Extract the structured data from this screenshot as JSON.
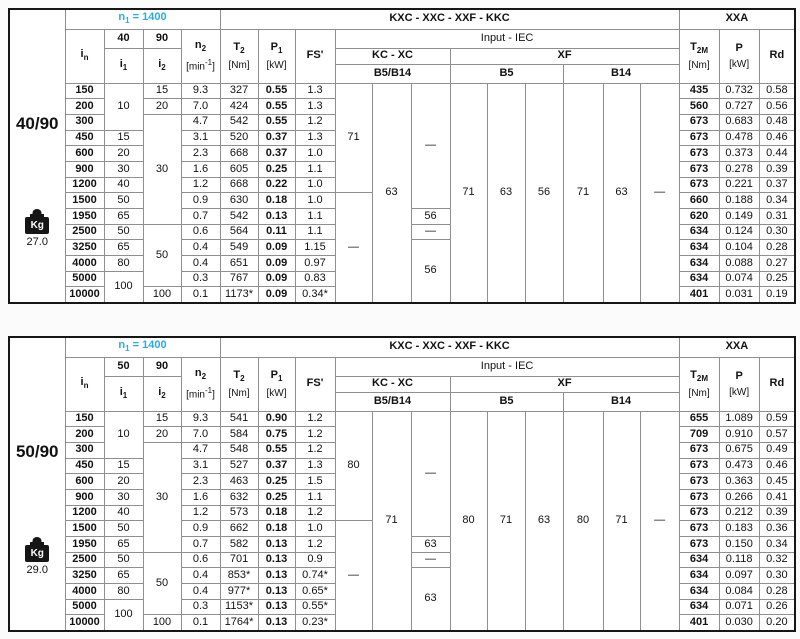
{
  "colors": {
    "accent_cyan": "#29abe2",
    "header_blue": "#d3e8f6",
    "shaded_cell_gray": "#e2e2e2",
    "border_dark": "#161616"
  },
  "tables": [
    {
      "ratio": "40/90",
      "kg_icon_label": "Kg",
      "weight_kg": "27.0",
      "header": {
        "n1": "n_{1} = 1400",
        "main_title": "KXC - XXC - XXF - KKC",
        "right_title": "XXA",
        "col_in": "i_{n}",
        "group_i1": "40",
        "group_i2": "90",
        "col_i1": "i_{1}",
        "col_i2": "i_{2}",
        "col_n2": "n_{2}",
        "n2_unit": "[min^{-1}]",
        "col_t2": "T_{2}",
        "t2_unit": "[Nm]",
        "col_p1": "P_{1}",
        "p1_unit": "[kW]",
        "col_fs": "FS'",
        "input_iec": "Input - IEC",
        "kc_xc": "KC - XC",
        "xf": "XF",
        "b5b14": "B5/B14",
        "b5": "B5",
        "b14": "B14",
        "col_t2m": "T_{2M}",
        "t2m_unit": "[Nm]",
        "col_p": "P",
        "p_unit": "[kW]",
        "col_rd": "Rd"
      },
      "rows": [
        {
          "in": "150",
          "n2": "9.3",
          "t2": "327",
          "p1": "0.55",
          "fs": "1.3",
          "t2m": "435",
          "p": "0.732",
          "rd": "0.58"
        },
        {
          "in": "200",
          "n2": "7.0",
          "t2": "424",
          "p1": "0.55",
          "fs": "1.3",
          "t2m": "560",
          "p": "0.727",
          "rd": "0.56"
        },
        {
          "in": "300",
          "n2": "4.7",
          "t2": "542",
          "p1": "0.55",
          "fs": "1.2",
          "t2m": "673",
          "p": "0.683",
          "rd": "0.48"
        },
        {
          "in": "450",
          "n2": "3.1",
          "t2": "520",
          "p1": "0.37",
          "fs": "1.3",
          "t2m": "673",
          "p": "0.478",
          "rd": "0.46"
        },
        {
          "in": "600",
          "n2": "2.3",
          "t2": "668",
          "p1": "0.37",
          "fs": "1.0",
          "t2m": "673",
          "p": "0.373",
          "rd": "0.44"
        },
        {
          "in": "900",
          "n2": "1.6",
          "t2": "605",
          "p1": "0.25",
          "fs": "1.1",
          "t2m": "673",
          "p": "0.278",
          "rd": "0.39"
        },
        {
          "in": "1200",
          "n2": "1.2",
          "t2": "668",
          "p1": "0.22",
          "fs": "1.0",
          "t2m": "673",
          "p": "0.221",
          "rd": "0.37"
        },
        {
          "in": "1500",
          "n2": "0.9",
          "t2": "630",
          "p1": "0.18",
          "fs": "1.0",
          "t2m": "660",
          "p": "0.188",
          "rd": "0.34"
        },
        {
          "in": "1950",
          "n2": "0.7",
          "t2": "542",
          "p1": "0.13",
          "fs": "1.1",
          "t2m": "620",
          "p": "0.149",
          "rd": "0.31"
        },
        {
          "in": "2500",
          "n2": "0.6",
          "t2": "564",
          "p1": "0.11",
          "fs": "1.1",
          "t2m": "634",
          "p": "0.124",
          "rd": "0.30"
        },
        {
          "in": "3250",
          "n2": "0.4",
          "t2": "549",
          "p1": "0.09",
          "fs": "1.15",
          "t2m": "634",
          "p": "0.104",
          "rd": "0.28"
        },
        {
          "in": "4000",
          "n2": "0.4",
          "t2": "651",
          "p1": "0.09",
          "fs": "0.97",
          "t2m": "634",
          "p": "0.088",
          "rd": "0.27"
        },
        {
          "in": "5000",
          "n2": "0.3",
          "t2": "767",
          "p1": "0.09",
          "fs": "0.83",
          "t2m": "634",
          "p": "0.074",
          "rd": "0.25"
        },
        {
          "in": "10000",
          "n2": "0.1",
          "t2": "1173*",
          "p1": "0.09",
          "fs": "0.34*",
          "t2m": "401",
          "p": "0.031",
          "rd": "0.19"
        }
      ],
      "i1_spans": [
        {
          "start": 0,
          "span": 3,
          "v": "10"
        },
        {
          "start": 3,
          "span": 1,
          "v": "15"
        },
        {
          "start": 4,
          "span": 1,
          "v": "20"
        },
        {
          "start": 5,
          "span": 1,
          "v": "30"
        },
        {
          "start": 6,
          "span": 1,
          "v": "40"
        },
        {
          "start": 7,
          "span": 1,
          "v": "50"
        },
        {
          "start": 8,
          "span": 1,
          "v": "65"
        },
        {
          "start": 9,
          "span": 1,
          "v": "50"
        },
        {
          "start": 10,
          "span": 1,
          "v": "65"
        },
        {
          "start": 11,
          "span": 1,
          "v": "80"
        },
        {
          "start": 12,
          "span": 2,
          "v": "100"
        }
      ],
      "i2_spans": [
        {
          "start": 0,
          "span": 1,
          "v": "15"
        },
        {
          "start": 1,
          "span": 1,
          "v": "20"
        },
        {
          "start": 2,
          "span": 7,
          "v": "30"
        },
        {
          "start": 9,
          "span": 4,
          "v": "50"
        },
        {
          "start": 13,
          "span": 1,
          "v": "100"
        }
      ],
      "iec_cols": [
        {
          "spans": [
            {
              "start": 0,
              "span": 7,
              "v": "71",
              "bg": "gray"
            },
            {
              "start": 7,
              "span": 7,
              "v": "—",
              "bg": "white"
            }
          ]
        },
        {
          "spans": [
            {
              "start": 0,
              "span": 14,
              "v": "63",
              "bg": "gray"
            }
          ]
        },
        {
          "spans": [
            {
              "start": 0,
              "span": 8,
              "v": "—",
              "bg": "white"
            },
            {
              "start": 8,
              "span": 1,
              "v": "56",
              "bg": "gray"
            },
            {
              "start": 9,
              "span": 1,
              "v": "—",
              "bg": "white"
            },
            {
              "start": 10,
              "span": 4,
              "v": "56",
              "bg": "gray"
            }
          ]
        },
        {
          "spans": [
            {
              "start": 0,
              "span": 14,
              "v": "71",
              "bg": "gray"
            }
          ]
        },
        {
          "spans": [
            {
              "start": 0,
              "span": 14,
              "v": "63",
              "bg": "gray"
            }
          ]
        },
        {
          "spans": [
            {
              "start": 0,
              "span": 14,
              "v": "56",
              "bg": "gray"
            }
          ]
        },
        {
          "spans": [
            {
              "start": 0,
              "span": 14,
              "v": "71",
              "bg": "gray"
            }
          ]
        },
        {
          "spans": [
            {
              "start": 0,
              "span": 14,
              "v": "63",
              "bg": "gray"
            }
          ]
        },
        {
          "spans": [
            {
              "start": 0,
              "span": 14,
              "v": "—",
              "bg": "white"
            }
          ]
        }
      ]
    },
    {
      "ratio": "50/90",
      "kg_icon_label": "Kg",
      "weight_kg": "29.0",
      "header": {
        "n1": "n_{1} = 1400",
        "main_title": "KXC - XXC - XXF - KKC",
        "right_title": "XXA",
        "col_in": "i_{n}",
        "group_i1": "50",
        "group_i2": "90",
        "col_i1": "i_{1}",
        "col_i2": "i_{2}",
        "col_n2": "n_{2}",
        "n2_unit": "[min^{-1}]",
        "col_t2": "T_{2}",
        "t2_unit": "[Nm]",
        "col_p1": "P_{1}",
        "p1_unit": "[kW]",
        "col_fs": "FS'",
        "input_iec": "Input - IEC",
        "kc_xc": "KC - XC",
        "xf": "XF",
        "b5b14": "B5/B14",
        "b5": "B5",
        "b14": "B14",
        "col_t2m": "T_{2M}",
        "t2m_unit": "[Nm]",
        "col_p": "P",
        "p_unit": "[kW]",
        "col_rd": "Rd"
      },
      "rows": [
        {
          "in": "150",
          "n2": "9.3",
          "t2": "541",
          "p1": "0.90",
          "fs": "1.2",
          "t2m": "655",
          "p": "1.089",
          "rd": "0.59"
        },
        {
          "in": "200",
          "n2": "7.0",
          "t2": "584",
          "p1": "0.75",
          "fs": "1.2",
          "t2m": "709",
          "p": "0.910",
          "rd": "0.57"
        },
        {
          "in": "300",
          "n2": "4.7",
          "t2": "548",
          "p1": "0.55",
          "fs": "1.2",
          "t2m": "673",
          "p": "0.675",
          "rd": "0.49"
        },
        {
          "in": "450",
          "n2": "3.1",
          "t2": "527",
          "p1": "0.37",
          "fs": "1.3",
          "t2m": "673",
          "p": "0.473",
          "rd": "0.46"
        },
        {
          "in": "600",
          "n2": "2.3",
          "t2": "463",
          "p1": "0.25",
          "fs": "1.5",
          "t2m": "673",
          "p": "0.363",
          "rd": "0.45"
        },
        {
          "in": "900",
          "n2": "1.6",
          "t2": "632",
          "p1": "0.25",
          "fs": "1.1",
          "t2m": "673",
          "p": "0.266",
          "rd": "0.41"
        },
        {
          "in": "1200",
          "n2": "1.2",
          "t2": "573",
          "p1": "0.18",
          "fs": "1.2",
          "t2m": "673",
          "p": "0.212",
          "rd": "0.39"
        },
        {
          "in": "1500",
          "n2": "0.9",
          "t2": "662",
          "p1": "0.18",
          "fs": "1.0",
          "t2m": "673",
          "p": "0.183",
          "rd": "0.36"
        },
        {
          "in": "1950",
          "n2": "0.7",
          "t2": "582",
          "p1": "0.13",
          "fs": "1.2",
          "t2m": "673",
          "p": "0.150",
          "rd": "0.34"
        },
        {
          "in": "2500",
          "n2": "0.6",
          "t2": "701",
          "p1": "0.13",
          "fs": "0.9",
          "t2m": "634",
          "p": "0.118",
          "rd": "0.32"
        },
        {
          "in": "3250",
          "n2": "0.4",
          "t2": "853*",
          "p1": "0.13",
          "fs": "0.74*",
          "t2m": "634",
          "p": "0.097",
          "rd": "0.30"
        },
        {
          "in": "4000",
          "n2": "0.4",
          "t2": "977*",
          "p1": "0.13",
          "fs": "0.65*",
          "t2m": "634",
          "p": "0.084",
          "rd": "0.28"
        },
        {
          "in": "5000",
          "n2": "0.3",
          "t2": "1153*",
          "p1": "0.13",
          "fs": "0.55*",
          "t2m": "634",
          "p": "0.071",
          "rd": "0.26"
        },
        {
          "in": "10000",
          "n2": "0.1",
          "t2": "1764*",
          "p1": "0.13",
          "fs": "0.23*",
          "t2m": "401",
          "p": "0.030",
          "rd": "0.20"
        }
      ],
      "i1_spans": [
        {
          "start": 0,
          "span": 3,
          "v": "10"
        },
        {
          "start": 3,
          "span": 1,
          "v": "15"
        },
        {
          "start": 4,
          "span": 1,
          "v": "20"
        },
        {
          "start": 5,
          "span": 1,
          "v": "30"
        },
        {
          "start": 6,
          "span": 1,
          "v": "40"
        },
        {
          "start": 7,
          "span": 1,
          "v": "50"
        },
        {
          "start": 8,
          "span": 1,
          "v": "65"
        },
        {
          "start": 9,
          "span": 1,
          "v": "50"
        },
        {
          "start": 10,
          "span": 1,
          "v": "65"
        },
        {
          "start": 11,
          "span": 1,
          "v": "80"
        },
        {
          "start": 12,
          "span": 2,
          "v": "100"
        }
      ],
      "i2_spans": [
        {
          "start": 0,
          "span": 1,
          "v": "15"
        },
        {
          "start": 1,
          "span": 1,
          "v": "20"
        },
        {
          "start": 2,
          "span": 7,
          "v": "30"
        },
        {
          "start": 9,
          "span": 4,
          "v": "50"
        },
        {
          "start": 13,
          "span": 1,
          "v": "100"
        }
      ],
      "iec_cols": [
        {
          "spans": [
            {
              "start": 0,
              "span": 7,
              "v": "80",
              "bg": "gray"
            },
            {
              "start": 7,
              "span": 7,
              "v": "—",
              "bg": "white"
            }
          ]
        },
        {
          "spans": [
            {
              "start": 0,
              "span": 14,
              "v": "71",
              "bg": "gray"
            }
          ]
        },
        {
          "spans": [
            {
              "start": 0,
              "span": 8,
              "v": "—",
              "bg": "white"
            },
            {
              "start": 8,
              "span": 1,
              "v": "63",
              "bg": "gray"
            },
            {
              "start": 9,
              "span": 1,
              "v": "—",
              "bg": "white"
            },
            {
              "start": 10,
              "span": 4,
              "v": "63",
              "bg": "gray"
            }
          ]
        },
        {
          "spans": [
            {
              "start": 0,
              "span": 14,
              "v": "80",
              "bg": "gray"
            }
          ]
        },
        {
          "spans": [
            {
              "start": 0,
              "span": 14,
              "v": "71",
              "bg": "gray"
            }
          ]
        },
        {
          "spans": [
            {
              "start": 0,
              "span": 14,
              "v": "63",
              "bg": "gray"
            }
          ]
        },
        {
          "spans": [
            {
              "start": 0,
              "span": 14,
              "v": "80",
              "bg": "gray"
            }
          ]
        },
        {
          "spans": [
            {
              "start": 0,
              "span": 14,
              "v": "71",
              "bg": "gray"
            }
          ]
        },
        {
          "spans": [
            {
              "start": 0,
              "span": 14,
              "v": "—",
              "bg": "white"
            }
          ]
        }
      ]
    }
  ]
}
